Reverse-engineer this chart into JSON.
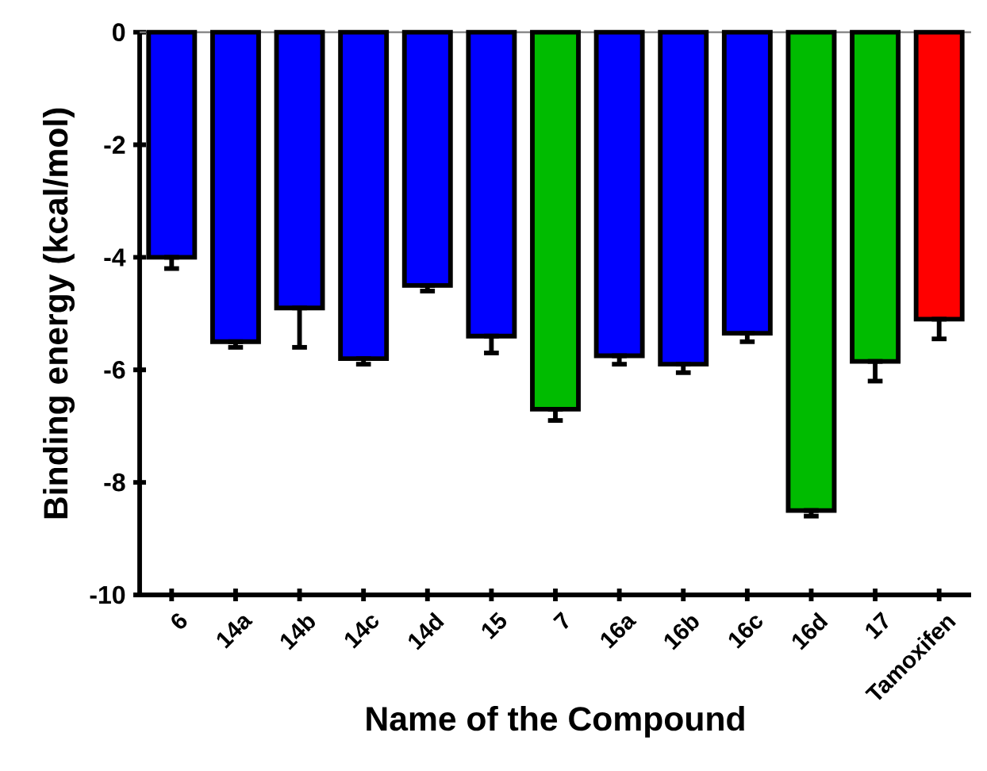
{
  "chart_data": {
    "type": "bar",
    "xlabel": "Name of the Compound",
    "ylabel": "Binding energy (kcal/mol)",
    "categories": [
      "6",
      "14a",
      "14b",
      "14c",
      "14d",
      "15",
      "7",
      "16a",
      "16b",
      "16c",
      "16d",
      "17",
      "Tamoxifen"
    ],
    "values": [
      -4.0,
      -5.5,
      -4.9,
      -5.8,
      -4.5,
      -5.4,
      -6.7,
      -5.75,
      -5.9,
      -5.35,
      -8.5,
      -5.85,
      -5.1
    ],
    "errors": [
      [
        -4.2,
        -4.0
      ],
      [
        -5.6,
        -5.5
      ],
      [
        -5.6,
        -4.9
      ],
      [
        -5.9,
        -5.8
      ],
      [
        -4.6,
        -4.5
      ],
      [
        -5.7,
        -5.4
      ],
      [
        -6.9,
        -6.7
      ],
      [
        -5.9,
        -5.75
      ],
      [
        -6.05,
        -5.9
      ],
      [
        -5.5,
        -5.35
      ],
      [
        -8.6,
        -8.5
      ],
      [
        -6.2,
        -5.85
      ],
      [
        -5.45,
        -5.1
      ]
    ],
    "colors": [
      "#0000ff",
      "#0000ff",
      "#0000ff",
      "#0000ff",
      "#0000ff",
      "#0000ff",
      "#00bb00",
      "#0000ff",
      "#0000ff",
      "#0000ff",
      "#00bb00",
      "#00bb00",
      "#ff0000"
    ],
    "ylim": [
      -10,
      0
    ],
    "yticks": [
      -10,
      -8,
      -6,
      -4,
      -2,
      0
    ]
  }
}
